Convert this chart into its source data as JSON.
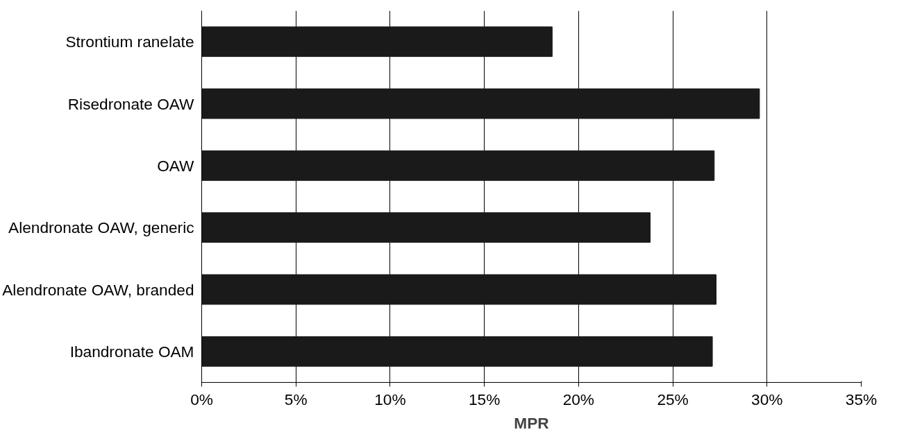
{
  "chart_data": {
    "type": "bar",
    "orientation": "horizontal",
    "xlabel": "MPR",
    "categories": [
      "Strontium ranelate",
      "Risedronate OAW",
      "OAW",
      "Alendronate OAW, generic",
      "Alendronate OAW, branded",
      "Ibandronate OAM"
    ],
    "values": [
      18.6,
      29.6,
      27.2,
      23.8,
      27.3,
      27.1
    ],
    "color": "#1a1a1a",
    "xlim": [
      0,
      35
    ],
    "xticks": [
      {
        "value": 0,
        "label": "0%"
      },
      {
        "value": 5,
        "label": "5%"
      },
      {
        "value": 10,
        "label": "10%"
      },
      {
        "value": 15,
        "label": "15%"
      },
      {
        "value": 20,
        "label": "20%"
      },
      {
        "value": 25,
        "label": "25%"
      },
      {
        "value": 30,
        "label": "30%"
      },
      {
        "value": 35,
        "label": "35%"
      }
    ],
    "grid": "x"
  }
}
